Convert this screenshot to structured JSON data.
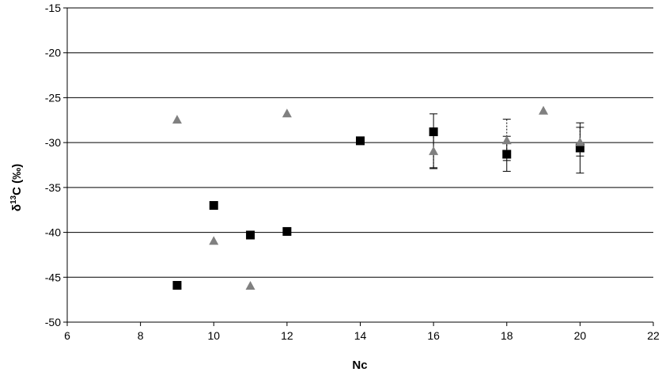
{
  "chart_data": {
    "type": "scatter",
    "title": "",
    "xlabel": "Nc",
    "ylabel": {
      "prefix": "δ",
      "sup": "13",
      "suffix": "C (‰)"
    },
    "xlim": [
      6,
      22
    ],
    "ylim": [
      -50,
      -15
    ],
    "xticks": [
      6,
      8,
      10,
      12,
      14,
      16,
      18,
      20,
      22
    ],
    "yticks": [
      -15,
      -20,
      -25,
      -30,
      -35,
      -40,
      -45,
      -50
    ],
    "grid": "horizontal",
    "legend": "none",
    "series": [
      {
        "marker": "square",
        "color": "#000000",
        "points": [
          {
            "x": 9,
            "y": -45.9
          },
          {
            "x": 10,
            "y": -37.0
          },
          {
            "x": 11,
            "y": -40.3
          },
          {
            "x": 12,
            "y": -39.9
          },
          {
            "x": 14,
            "y": -29.8
          },
          {
            "x": 16,
            "y": -28.8,
            "err_low": -32.9,
            "err_high": -26.8
          },
          {
            "x": 18,
            "y": -31.3,
            "err_low": -33.2,
            "err_high": -29.3
          },
          {
            "x": 20,
            "y": -30.6,
            "err_low": -33.4,
            "err_high": -27.8
          }
        ]
      },
      {
        "marker": "triangle",
        "color": "#808080",
        "points": [
          {
            "x": 9,
            "y": -27.4
          },
          {
            "x": 10,
            "y": -40.9
          },
          {
            "x": 11,
            "y": -45.9
          },
          {
            "x": 12,
            "y": -26.7
          },
          {
            "x": 16,
            "y": -30.9,
            "err_low": -32.8,
            "err_high": -29.0
          },
          {
            "x": 18,
            "y": -29.7,
            "err_low": -32.0,
            "err_high": -27.4
          },
          {
            "x": 19,
            "y": -26.4
          },
          {
            "x": 20,
            "y": -29.9,
            "err_low": -31.5,
            "err_high": -28.3
          }
        ]
      }
    ]
  }
}
